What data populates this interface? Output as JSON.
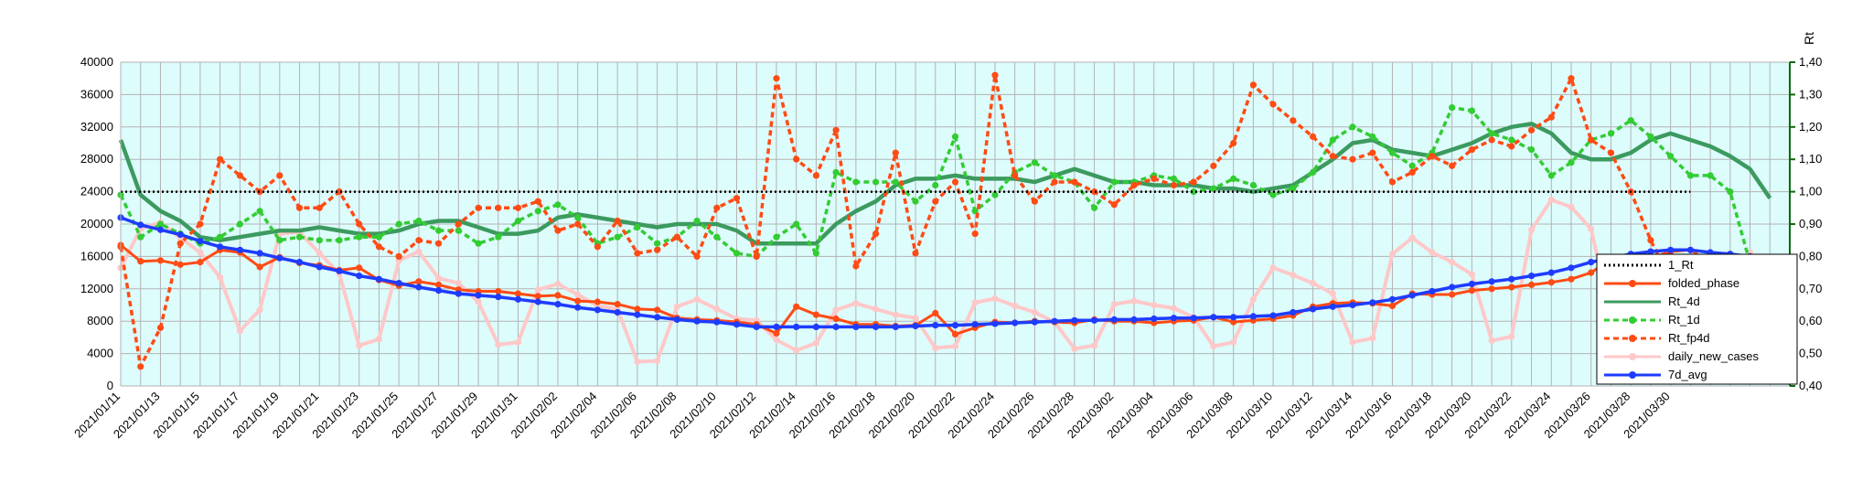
{
  "chart_data": {
    "type": "line",
    "left_axis": {
      "ticks": [
        "0",
        "4000",
        "8000",
        "12000",
        "16000",
        "20000",
        "24000",
        "28000",
        "32000",
        "36000",
        "40000"
      ],
      "min": 0,
      "max": 40000
    },
    "right_axis": {
      "title": "Rt",
      "ticks": [
        "0,40",
        "0,50",
        "0,60",
        "0,70",
        "0,80",
        "0,90",
        "1,00",
        "1,10",
        "1,20",
        "1,30",
        "1,40"
      ],
      "min": 0.4,
      "max": 1.4
    },
    "x_labels": [
      "2021/01/11",
      "2021/01/13",
      "2021/01/15",
      "2021/01/17",
      "2021/01/19",
      "2021/01/21",
      "2021/01/23",
      "2021/01/25",
      "2021/01/27",
      "2021/01/29",
      "2021/01/31",
      "2021/02/02",
      "2021/02/04",
      "2021/02/06",
      "2021/02/08",
      "2021/02/10",
      "2021/02/12",
      "2021/02/14",
      "2021/02/16",
      "2021/02/18",
      "2021/02/20",
      "2021/02/22",
      "2021/02/24",
      "2021/02/26",
      "2021/02/28",
      "2021/03/02",
      "2021/03/04",
      "2021/03/06",
      "2021/03/08",
      "2021/03/10",
      "2021/03/12",
      "2021/03/14",
      "2021/03/16",
      "2021/03/18",
      "2021/03/20",
      "2021/03/22",
      "2021/03/24",
      "2021/03/26",
      "2021/03/28",
      "2021/03/30"
    ],
    "grid": true,
    "plot_background": "#ddfcfc",
    "legend_position": "right",
    "series": [
      {
        "name": "1_Rt",
        "axis": "right",
        "color": "#000000",
        "style": "dotted",
        "marker": "none",
        "values": [
          1.0,
          1.0,
          1.0,
          1.0,
          1.0,
          1.0,
          1.0,
          1.0,
          1.0,
          1.0,
          1.0,
          1.0,
          1.0,
          1.0,
          1.0,
          1.0,
          1.0,
          1.0,
          1.0,
          1.0,
          1.0,
          1.0,
          1.0,
          1.0,
          1.0,
          1.0,
          1.0,
          1.0,
          1.0,
          1.0,
          1.0,
          1.0,
          1.0,
          1.0,
          1.0,
          1.0,
          1.0,
          1.0,
          1.0,
          1.0,
          1.0,
          1.0,
          1.0,
          1.0,
          1.0,
          1.0,
          1.0,
          1.0,
          1.0,
          1.0,
          1.0,
          1.0,
          1.0,
          1.0,
          1.0,
          1.0,
          1.0,
          1.0,
          1.0,
          1.0,
          1.0,
          1.0,
          1.0,
          1.0,
          1.0,
          1.0,
          1.0,
          1.0,
          1.0,
          1.0,
          1.0,
          1.0,
          1.0,
          1.0,
          1.0,
          1.0,
          1.0,
          1.0,
          1.0,
          1.0
        ]
      },
      {
        "name": "folded_phase",
        "axis": "left",
        "color": "#ff4b14",
        "style": "solid",
        "marker": "circle",
        "values": [
          17400,
          15400,
          15500,
          15000,
          15300,
          16800,
          16500,
          14700,
          15900,
          15200,
          14900,
          14300,
          14600,
          13100,
          12400,
          12900,
          12500,
          11900,
          11700,
          11700,
          11400,
          11100,
          11200,
          10500,
          10400,
          10100,
          9500,
          9400,
          8400,
          8200,
          8100,
          7900,
          7600,
          6500,
          9800,
          8800,
          8300,
          7600,
          7600,
          7400,
          7500,
          9000,
          6400,
          7200,
          7900,
          7800,
          8000,
          7900,
          7800,
          8200,
          8000,
          8000,
          7800,
          8000,
          8100,
          8500,
          7900,
          8100,
          8300,
          8700,
          9800,
          10200,
          10300,
          10200,
          9900,
          11400,
          11300,
          11300,
          11800,
          12000,
          12200,
          12500,
          12800,
          13200,
          14000,
          15700,
          15800,
          15800,
          16600,
          16800,
          15200,
          13300,
          11800
        ]
      },
      {
        "name": "Rt_4d",
        "axis": "right",
        "color": "#3c9a5f",
        "style": "solid",
        "marker": "none",
        "values": [
          1.16,
          0.99,
          0.94,
          0.91,
          0.86,
          0.85,
          0.86,
          0.87,
          0.88,
          0.88,
          0.89,
          0.88,
          0.87,
          0.87,
          0.88,
          0.9,
          0.91,
          0.91,
          0.89,
          0.87,
          0.87,
          0.88,
          0.92,
          0.93,
          0.92,
          0.91,
          0.9,
          0.89,
          0.9,
          0.9,
          0.9,
          0.88,
          0.84,
          0.84,
          0.84,
          0.84,
          0.9,
          0.94,
          0.97,
          1.02,
          1.04,
          1.04,
          1.05,
          1.04,
          1.04,
          1.04,
          1.03,
          1.05,
          1.07,
          1.05,
          1.03,
          1.03,
          1.02,
          1.02,
          1.02,
          1.01,
          1.01,
          1.0,
          1.01,
          1.02,
          1.06,
          1.1,
          1.15,
          1.16,
          1.13,
          1.12,
          1.11,
          1.13,
          1.15,
          1.18,
          1.2,
          1.21,
          1.18,
          1.12,
          1.1,
          1.1,
          1.12,
          1.16,
          1.18,
          1.16,
          1.14,
          1.11,
          1.07,
          0.98
        ]
      },
      {
        "name": "Rt_1d",
        "axis": "right",
        "color": "#33cc33",
        "style": "dotted",
        "marker": "circle",
        "values": [
          0.99,
          0.86,
          0.9,
          0.87,
          0.84,
          0.86,
          0.9,
          0.94,
          0.85,
          0.86,
          0.85,
          0.85,
          0.86,
          0.86,
          0.9,
          0.91,
          0.88,
          0.88,
          0.84,
          0.86,
          0.91,
          0.94,
          0.96,
          0.92,
          0.84,
          0.86,
          0.89,
          0.84,
          0.86,
          0.91,
          0.86,
          0.81,
          0.8,
          0.86,
          0.9,
          0.81,
          1.06,
          1.03,
          1.03,
          1.03,
          0.97,
          1.02,
          1.17,
          0.94,
          0.99,
          1.06,
          1.09,
          1.05,
          1.03,
          0.95,
          1.03,
          1.03,
          1.05,
          1.04,
          1.0,
          1.01,
          1.04,
          1.02,
          0.99,
          1.01,
          1.06,
          1.16,
          1.2,
          1.17,
          1.12,
          1.08,
          1.12,
          1.26,
          1.25,
          1.18,
          1.16,
          1.13,
          1.05,
          1.09,
          1.16,
          1.18,
          1.22,
          1.17,
          1.11,
          1.05,
          1.05,
          1.0,
          0.78
        ]
      },
      {
        "name": "Rt_fp4d",
        "axis": "right",
        "color": "#ff4b14",
        "style": "dotted",
        "marker": "circle",
        "values": [
          0.83,
          0.46,
          0.58,
          0.84,
          0.9,
          1.1,
          1.05,
          1.0,
          1.05,
          0.95,
          0.95,
          1.0,
          0.9,
          0.83,
          0.8,
          0.85,
          0.84,
          0.9,
          0.95,
          0.95,
          0.95,
          0.97,
          0.88,
          0.9,
          0.83,
          0.91,
          0.81,
          0.82,
          0.86,
          0.8,
          0.95,
          0.98,
          0.8,
          1.35,
          1.1,
          1.05,
          1.19,
          0.77,
          0.87,
          1.12,
          0.81,
          0.97,
          1.03,
          0.87,
          1.36,
          1.05,
          0.97,
          1.03,
          1.03,
          1.0,
          0.96,
          1.02,
          1.04,
          1.02,
          1.03,
          1.08,
          1.15,
          1.33,
          1.27,
          1.22,
          1.17,
          1.11,
          1.1,
          1.12,
          1.03,
          1.06,
          1.11,
          1.08,
          1.13,
          1.16,
          1.14,
          1.19,
          1.23,
          1.35,
          1.16,
          1.12,
          1.0,
          0.85,
          0.73
        ]
      },
      {
        "name": "daily_new_cases",
        "axis": "left",
        "color": "#ffc8c8",
        "style": "solid",
        "marker": "circle",
        "values": [
          14600,
          19400,
          20200,
          18300,
          16500,
          13400,
          6800,
          9400,
          18800,
          19000,
          16400,
          13900,
          5000,
          5800,
          15500,
          16600,
          13300,
          12700,
          10400,
          5100,
          5400,
          11900,
          12600,
          11300,
          9900,
          9500,
          3000,
          3100,
          9800,
          10700,
          9500,
          8300,
          8100,
          5700,
          4400,
          5300,
          9400,
          10200,
          9500,
          8800,
          8400,
          4700,
          4900,
          10300,
          10800,
          9900,
          9100,
          7900,
          4600,
          5000,
          10100,
          10500,
          10000,
          9600,
          8500,
          4900,
          5400,
          10700,
          14600,
          13700,
          12700,
          11400,
          5400,
          5900,
          16300,
          18300,
          16500,
          15300,
          13800,
          5600,
          6100,
          19300,
          23000,
          22100,
          19400,
          8600,
          7100,
          5900,
          6200,
          10700,
          13200,
          12300,
          16500
        ]
      },
      {
        "name": "7d_avg",
        "axis": "left",
        "color": "#1e3cff",
        "style": "solid",
        "marker": "circle",
        "values": [
          20800,
          19900,
          19300,
          18700,
          17900,
          17200,
          16800,
          16400,
          15800,
          15300,
          14700,
          14200,
          13600,
          13200,
          12700,
          12200,
          11800,
          11400,
          11200,
          11000,
          10700,
          10400,
          10100,
          9700,
          9400,
          9100,
          8800,
          8500,
          8200,
          8000,
          7900,
          7600,
          7300,
          7300,
          7300,
          7300,
          7300,
          7300,
          7300,
          7300,
          7400,
          7500,
          7500,
          7600,
          7700,
          7800,
          7900,
          8000,
          8100,
          8100,
          8200,
          8200,
          8300,
          8400,
          8400,
          8500,
          8500,
          8600,
          8700,
          9100,
          9500,
          9800,
          10000,
          10300,
          10700,
          11200,
          11700,
          12200,
          12600,
          12900,
          13200,
          13600,
          14000,
          14600,
          15300,
          15800,
          16300,
          16600,
          16800,
          16800,
          16500,
          16300,
          16000
        ]
      }
    ]
  }
}
